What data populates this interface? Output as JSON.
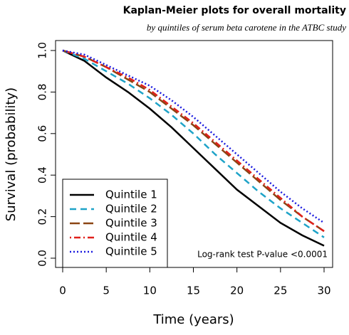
{
  "chart_data": {
    "type": "line",
    "title": "Kaplan-Meier plots for overall mortality",
    "subtitle": "by quintiles of serum beta carotene in the ATBC study",
    "x_label": "Time (years)",
    "y_label": "Survival (probability)",
    "annotation": "Log-rank test P-value <0.0001",
    "x": [
      0,
      2.5,
      5,
      7.5,
      10,
      12.5,
      15,
      17.5,
      20,
      22.5,
      25,
      27.5,
      30
    ],
    "series": [
      {
        "name": "Quintile 1",
        "color": "#000000",
        "dash": "solid",
        "values": [
          1.0,
          0.95,
          0.87,
          0.8,
          0.72,
          0.63,
          0.53,
          0.43,
          0.33,
          0.25,
          0.17,
          0.11,
          0.06
        ]
      },
      {
        "name": "Quintile 2",
        "color": "#1ea3c8",
        "dash": "dashed",
        "values": [
          1.0,
          0.96,
          0.9,
          0.84,
          0.77,
          0.69,
          0.6,
          0.5,
          0.41,
          0.32,
          0.24,
          0.17,
          0.1
        ]
      },
      {
        "name": "Quintile 3",
        "color": "#8b4513",
        "dash": "longdash",
        "values": [
          1.0,
          0.97,
          0.92,
          0.86,
          0.8,
          0.72,
          0.64,
          0.55,
          0.46,
          0.37,
          0.28,
          0.2,
          0.13
        ]
      },
      {
        "name": "Quintile 4",
        "color": "#e0201b",
        "dash": "dotdash",
        "values": [
          1.0,
          0.97,
          0.92,
          0.87,
          0.81,
          0.73,
          0.65,
          0.56,
          0.47,
          0.38,
          0.29,
          0.2,
          0.13
        ]
      },
      {
        "name": "Quintile 5",
        "color": "#1a1adf",
        "dash": "dotted",
        "values": [
          1.0,
          0.98,
          0.93,
          0.88,
          0.83,
          0.76,
          0.68,
          0.59,
          0.5,
          0.41,
          0.32,
          0.24,
          0.17
        ]
      }
    ],
    "xlim": [
      0,
      30
    ],
    "xticks": [
      0,
      5,
      10,
      15,
      20,
      25,
      30
    ],
    "ylim": [
      0,
      1
    ],
    "yticks": [
      {
        "value": 0,
        "label": "0.0"
      },
      {
        "value": 0.2,
        "label": "0.2"
      },
      {
        "value": 0.4,
        "label": "0.4"
      },
      {
        "value": 0.6,
        "label": "0.6"
      },
      {
        "value": 0.8,
        "label": "0.8"
      },
      {
        "value": 1,
        "label": "1.0"
      }
    ],
    "legend": "bottom-left"
  }
}
